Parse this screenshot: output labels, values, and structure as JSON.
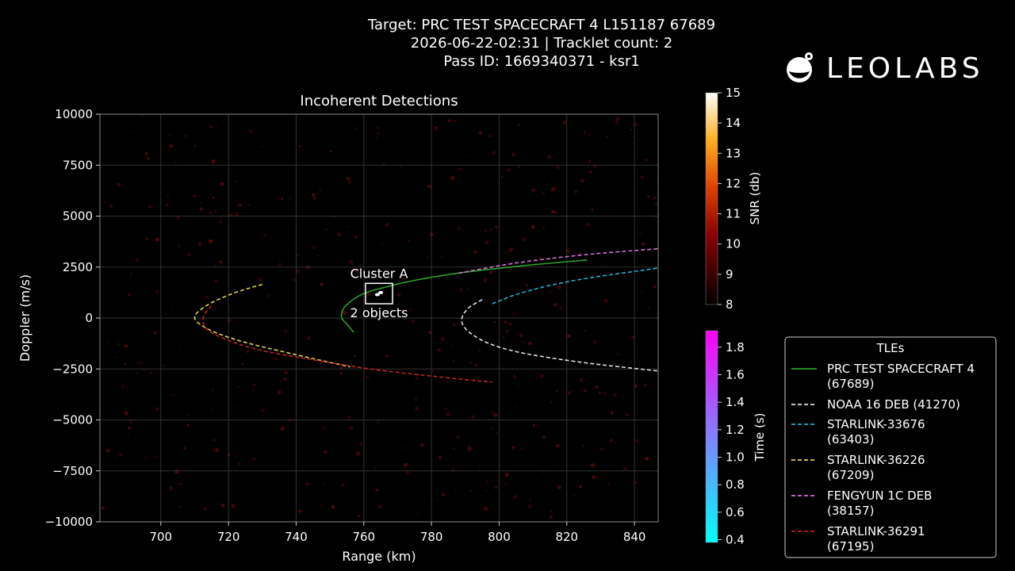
{
  "header": {
    "line1": "Target: PRC TEST SPACECRAFT 4 L151187 67689",
    "line2": "2026-06-22-02:31 | Tracklet count: 2",
    "line3": "Pass ID: 1669340371 - ksr1"
  },
  "logo": {
    "text": "LEOLABS"
  },
  "chart_data": {
    "type": "scatter",
    "title": "Incoherent Detections",
    "xlabel": "Range (km)",
    "ylabel": "Doppler (m/s)",
    "xlim": [
      682,
      847
    ],
    "ylim": [
      -10000,
      10000
    ],
    "xticks": [
      700,
      720,
      740,
      760,
      780,
      800,
      820,
      840
    ],
    "yticks": [
      10000,
      7500,
      5000,
      2500,
      0,
      -2500,
      -5000,
      -7500,
      -10000
    ],
    "ytick_labels": [
      "10000",
      "7500",
      "5000",
      "2500",
      "0",
      "−2500",
      "−5000",
      "−7500",
      "−10000"
    ],
    "grid": true,
    "annotation": {
      "label_top": "Cluster A",
      "label_bottom": "2 objects",
      "box_x": [
        760.5,
        768.5
      ],
      "box_y": [
        700,
        1700
      ],
      "detections": [
        {
          "x": 764,
          "y": 1150
        },
        {
          "x": 765,
          "y": 1250
        }
      ]
    },
    "colorbar_snr": {
      "label": "SNR (db)",
      "ticks": [
        8,
        9,
        10,
        11,
        12,
        13,
        14,
        15
      ],
      "range": [
        8,
        15
      ]
    },
    "colorbar_time": {
      "label": "Time (s)",
      "ticks": [
        0.4,
        0.6,
        0.8,
        1.0,
        1.2,
        1.4,
        1.6,
        1.8
      ],
      "tick_labels": [
        "0.4",
        "0.6",
        "0.8",
        "1.0",
        "1.2",
        "1.4",
        "1.6",
        "1.8"
      ],
      "range": [
        0.38,
        1.92
      ]
    },
    "legend": {
      "title": "TLEs",
      "position": "bottom-right outside"
    },
    "series": [
      {
        "name": "PRC TEST SPACECRAFT 4 (67689)",
        "label_lines": [
          "PRC TEST SPACECRAFT 4",
          "(67689)"
        ],
        "color": "#2ca02c",
        "style": "solid",
        "x": [
          757,
          755,
          753.5,
          753.8,
          756,
          760,
          766,
          775,
          790,
          808,
          826
        ],
        "y": [
          -700,
          -300,
          0,
          400,
          800,
          1200,
          1500,
          1850,
          2250,
          2580,
          2850
        ]
      },
      {
        "name": "NOAA 16 DEB (41270)",
        "label_lines": [
          "NOAA 16 DEB (41270)"
        ],
        "color": "#dddddd",
        "style": "dashed",
        "x": [
          795,
          791,
          789,
          789.5,
          792,
          797,
          805,
          815,
          828,
          847
        ],
        "y": [
          900,
          500,
          0,
          -400,
          -800,
          -1250,
          -1650,
          -1950,
          -2250,
          -2600
        ]
      },
      {
        "name": "STARLINK-33676 (63403)",
        "label_lines": [
          "STARLINK-33676",
          "(63403)"
        ],
        "color": "#20b2c8",
        "style": "dashed",
        "x": [
          798,
          805,
          815,
          828,
          847
        ],
        "y": [
          700,
          1150,
          1600,
          2000,
          2450
        ]
      },
      {
        "name": "STARLINK-36226 (67209)",
        "label_lines": [
          "STARLINK-36226",
          "(67209)"
        ],
        "color": "#d8d050",
        "style": "dashed",
        "x": [
          730,
          722,
          715,
          711,
          710,
          711.5,
          716,
          725,
          740,
          756
        ],
        "y": [
          1650,
          1250,
          750,
          300,
          0,
          -300,
          -700,
          -1200,
          -1800,
          -2400
        ]
      },
      {
        "name": "FENGYUN 1C DEB (38157)",
        "label_lines": [
          "FENGYUN 1C DEB",
          "(38157)"
        ],
        "color": "#d070d0",
        "style": "dashed",
        "x": [
          788,
          805,
          825,
          847
        ],
        "y": [
          2200,
          2700,
          3100,
          3400
        ]
      },
      {
        "name": "STARLINK-36291 (67195)",
        "label_lines": [
          "STARLINK-36291",
          "(67195)"
        ],
        "color": "#c02020",
        "style": "dashed",
        "x": [
          715,
          713,
          712.5,
          714,
          720,
          730,
          745,
          762,
          780,
          798
        ],
        "y": [
          600,
          200,
          -200,
          -600,
          -1100,
          -1600,
          -2050,
          -2500,
          -2850,
          -3150
        ]
      }
    ]
  }
}
